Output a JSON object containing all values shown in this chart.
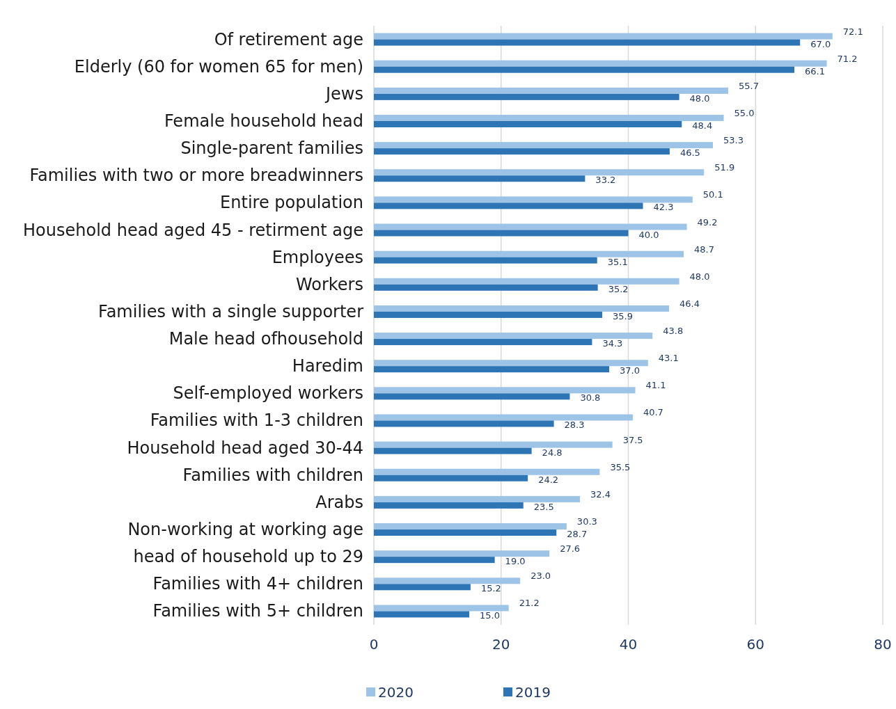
{
  "chart_data": {
    "type": "bar",
    "orientation": "horizontal",
    "categories": [
      "Of retirement age",
      "Elderly (60 for women 65 for men)",
      "Jews",
      "Female household head",
      "Single-parent families",
      "Families with two or more breadwinners",
      "Entire population",
      "Household head aged 45 - retirment age",
      "Employees",
      "Workers",
      "Families with a single supporter",
      "Male head ofhousehold",
      "Haredim",
      "Self-employed workers",
      "Families with 1-3 children",
      "Household head aged 30-44",
      "Families with children",
      "Arabs",
      "Non-working at working age",
      "head of household up to 29",
      "Families with 4+ children",
      "Families with 5+ children"
    ],
    "series": [
      {
        "name": "2020",
        "color": "#9dc3e6",
        "values": [
          72.1,
          71.2,
          55.7,
          55.0,
          53.3,
          51.9,
          50.1,
          49.2,
          48.7,
          48.0,
          46.4,
          43.8,
          43.1,
          41.1,
          40.7,
          37.5,
          35.5,
          32.4,
          30.3,
          27.6,
          23.0,
          21.2
        ],
        "value_labels": [
          "72.1",
          "71.2",
          "55.7",
          "55.0",
          "53.3",
          "51.9",
          "50.1",
          "49.2",
          "48.7",
          "48.0",
          "46.4",
          "43.8",
          "43.1",
          "41.1",
          "40.7",
          "37.5",
          "35.5",
          "32.4",
          "30.3",
          "27.6",
          "23.0",
          "21.2"
        ]
      },
      {
        "name": "2019",
        "color": "#2e75b6",
        "values": [
          67.0,
          66.1,
          48.0,
          48.4,
          46.5,
          33.2,
          42.3,
          40.0,
          35.1,
          35.2,
          35.9,
          34.3,
          37.0,
          30.8,
          28.3,
          24.8,
          24.2,
          23.5,
          28.7,
          19.0,
          15.2,
          15.0
        ],
        "value_labels": [
          "67.0",
          "66.1",
          "48.0",
          "48.4",
          "46.5",
          "33.2",
          "42.3",
          "40.0",
          "35.1",
          "35.2",
          "35.9",
          "34.3",
          "37.0",
          "30.8",
          "28.3",
          "24.8",
          "24.2",
          "23.5",
          "28.7",
          "19.0",
          "15.2",
          "15.0"
        ]
      }
    ],
    "xlim": [
      0,
      80
    ],
    "xticks": [
      0,
      20,
      40,
      60,
      80
    ],
    "grid": "x",
    "legend": "bottom"
  }
}
